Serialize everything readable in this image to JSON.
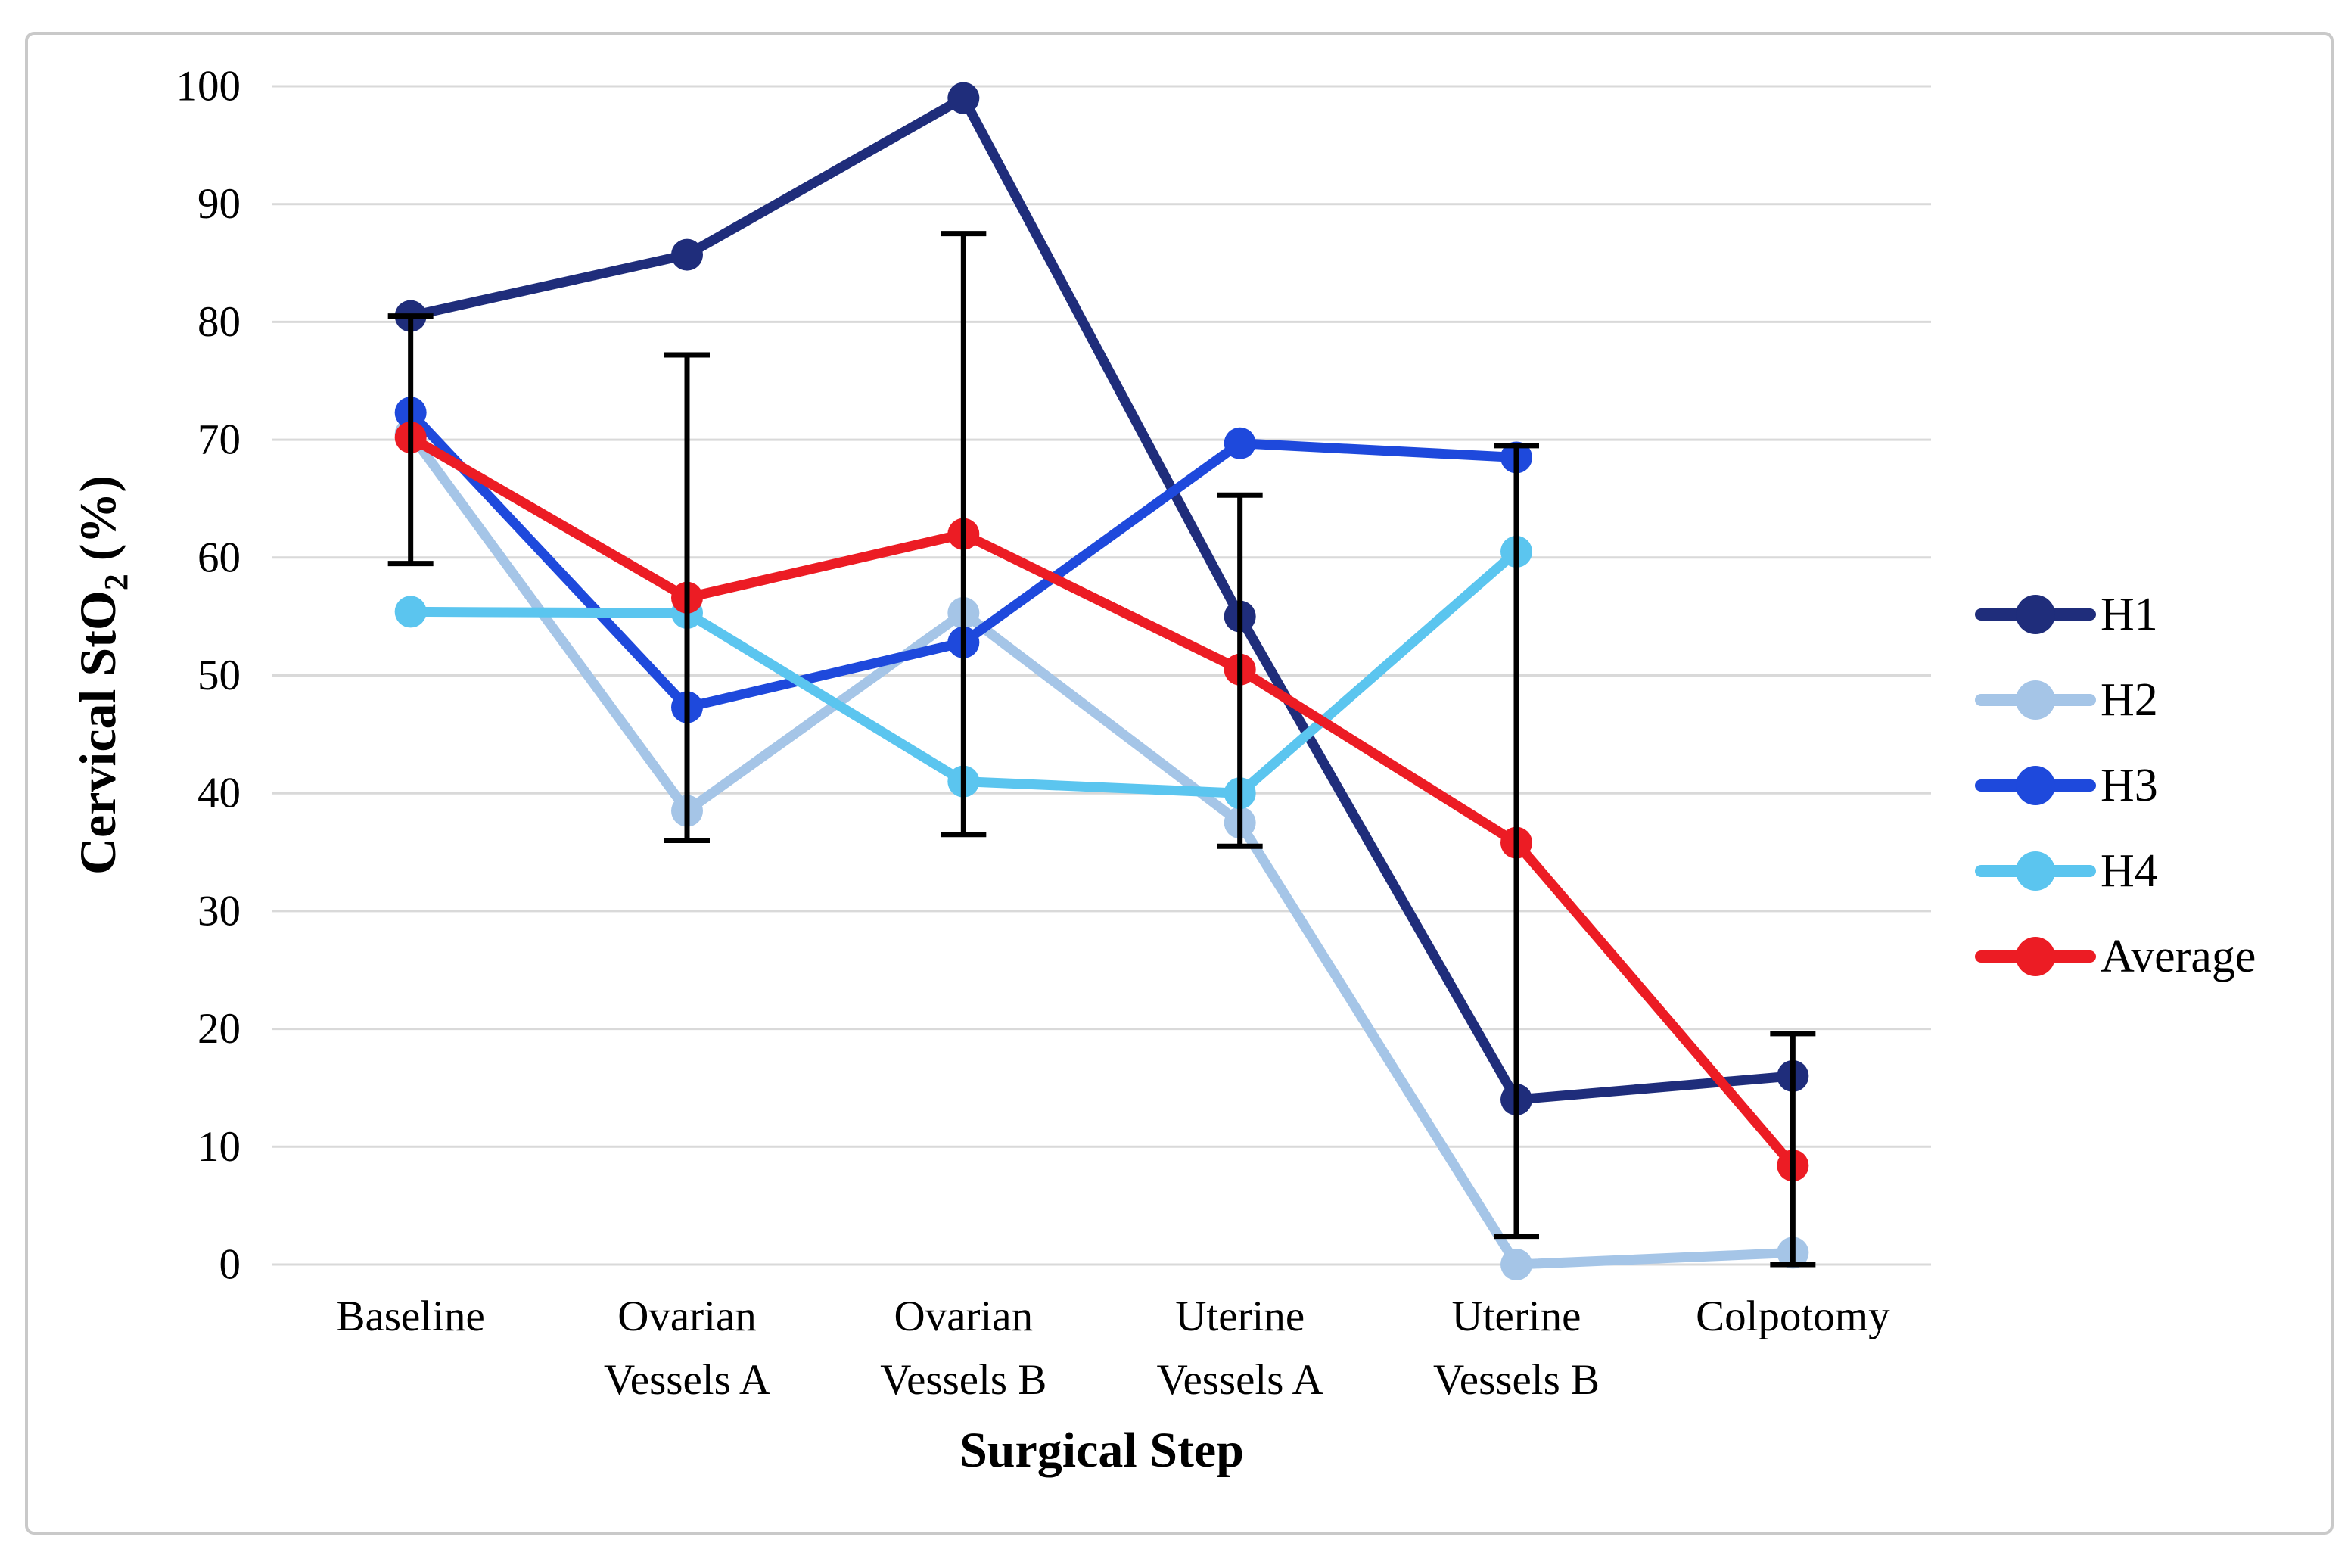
{
  "figure": {
    "background": "#FFFFFF",
    "border_color": "#C9C9C9",
    "grid_color": "#D9D9D9",
    "error_bar_color": "#000000"
  },
  "chart_data": {
    "type": "line",
    "title": "",
    "xlabel": "Surgical Step",
    "ylabel": "Cervical StO2 (%)",
    "ylabel_parts": {
      "pre": "Cervical StO",
      "sub": "2",
      "post": " (%)"
    },
    "ylim": [
      0,
      100
    ],
    "y_ticks": [
      100,
      90,
      80,
      70,
      60,
      50,
      40,
      30,
      20,
      10,
      0
    ],
    "grid": "horizontal",
    "legend_position": "right",
    "categories": [
      {
        "label": "Baseline",
        "lines": [
          "Baseline"
        ]
      },
      {
        "label": "Ovarian Vessels A",
        "lines": [
          "Ovarian",
          "Vessels A"
        ]
      },
      {
        "label": "Ovarian Vessels B",
        "lines": [
          "Ovarian",
          "Vessels B"
        ]
      },
      {
        "label": "Uterine Vessels A",
        "lines": [
          "Uterine",
          "Vessels A"
        ]
      },
      {
        "label": "Uterine Vessels B",
        "lines": [
          "Uterine",
          "Vessels B"
        ]
      },
      {
        "label": "Colpotomy",
        "lines": [
          "Colpotomy"
        ]
      }
    ],
    "series": [
      {
        "name": "H1",
        "color": "#1F2D7B",
        "values": [
          80.5,
          85.7,
          99.0,
          55.0,
          14.0,
          16.0
        ]
      },
      {
        "name": "H2",
        "color": "#A5C5E7",
        "values": [
          70.5,
          38.5,
          55.3,
          37.5,
          0.0,
          1.0
        ]
      },
      {
        "name": "H3",
        "color": "#1E49DC",
        "values": [
          72.3,
          47.3,
          52.8,
          69.7,
          68.5,
          null
        ]
      },
      {
        "name": "H4",
        "color": "#5BC5EF",
        "values": [
          55.4,
          55.3,
          41.0,
          40.0,
          60.5,
          null
        ]
      },
      {
        "name": "Average",
        "color": "#EC1C24",
        "values": [
          70.2,
          56.6,
          62.0,
          50.5,
          35.8,
          8.4
        ]
      }
    ],
    "error_bars": {
      "attached_to": "Average",
      "color": "#000000",
      "ranges": [
        [
          59.5,
          80.5
        ],
        [
          36.0,
          77.2
        ],
        [
          36.5,
          87.5
        ],
        [
          35.5,
          65.3
        ],
        [
          2.4,
          69.5
        ],
        [
          0.0,
          19.6
        ]
      ]
    },
    "legend": [
      "H1",
      "H2",
      "H3",
      "H4",
      "Average"
    ]
  }
}
